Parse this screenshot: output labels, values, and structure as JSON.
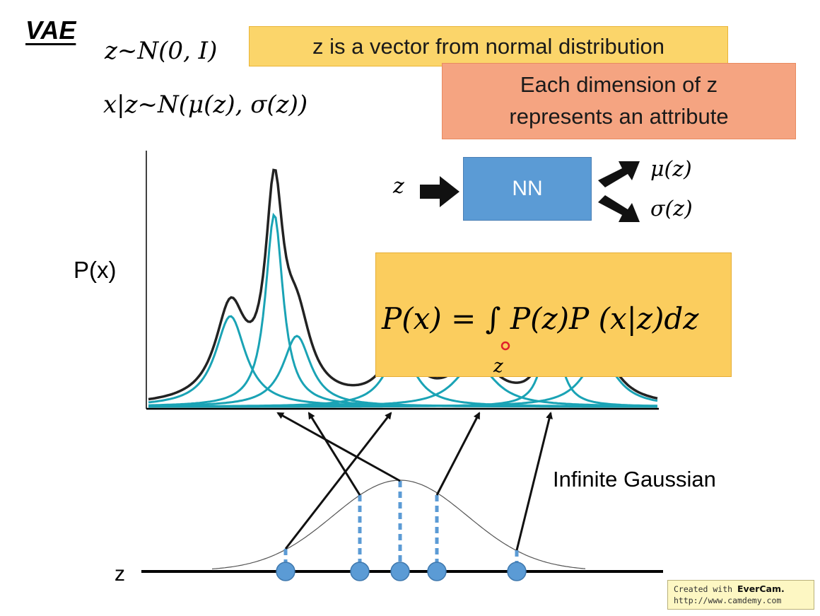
{
  "title": "VAE",
  "equations": {
    "prior": "z~N(0, I)",
    "conditional": "x|z~N(μ(z), σ(z))",
    "marginal": "P(x) = ∫ P(z)P (x|z)dz",
    "integral_subscript": "z"
  },
  "callouts": {
    "normal_vector": "z is a vector from normal distribution",
    "attribute_line1": "Each dimension of z",
    "attribute_line2": "represents an attribute"
  },
  "network": {
    "input": "z",
    "block": "NN",
    "output_mu": "μ(z)",
    "output_sigma": "σ(z)"
  },
  "labels": {
    "px_axis": "P(x)",
    "z_axis": "z",
    "infinite_gaussian": "Infinite Gaussian"
  },
  "watermark": {
    "line1_prefix": "Created with ",
    "line1_brand": "EverCam.",
    "line2": "http://www.camdemy.com"
  },
  "colors": {
    "curve_total": "#222222",
    "curve_component": "#1aa3b5",
    "sample_point": "#5b9bd5",
    "yellow_callout": "#fbd56a",
    "orange_callout": "#f5a481",
    "nn_block": "#5b9bd5"
  }
}
